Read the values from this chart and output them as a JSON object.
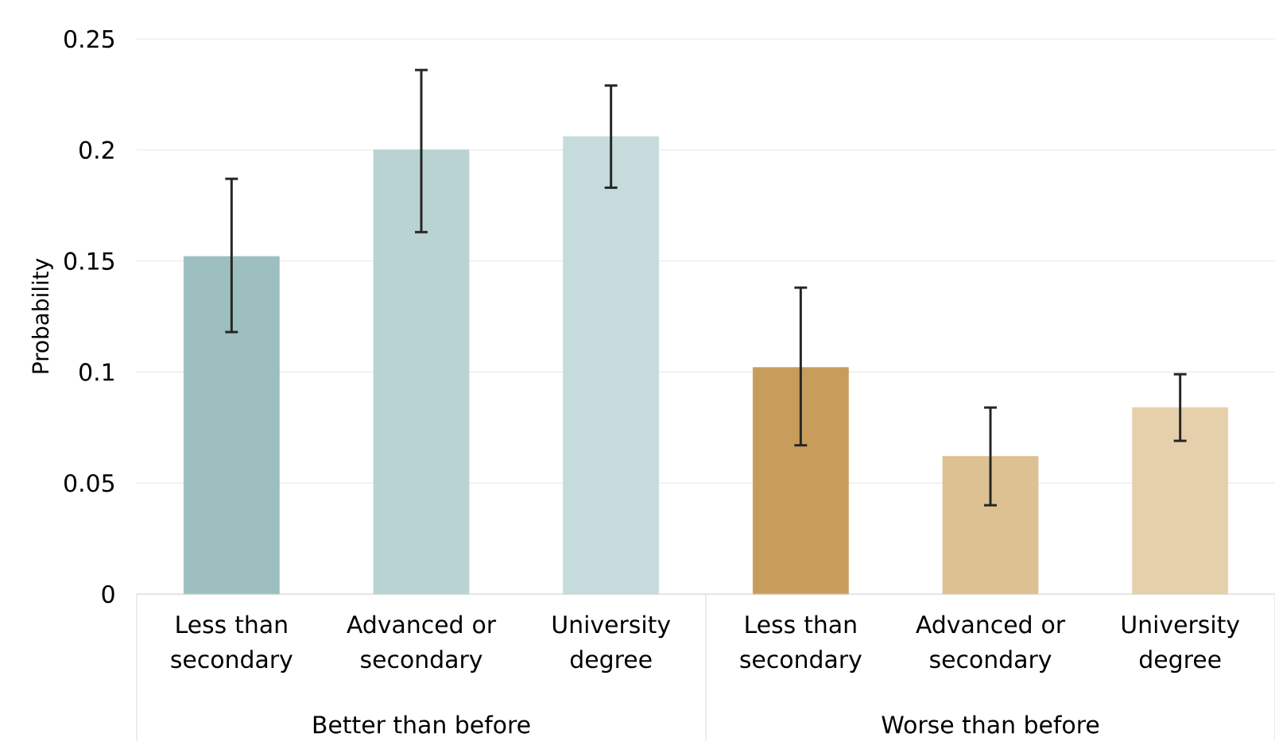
{
  "chart_data": {
    "type": "bar",
    "ylabel": "Probability",
    "categories": [
      "Less than secondary",
      "Advanced or secondary",
      "University degree",
      "Less than secondary",
      "Advanced or secondary",
      "University degree"
    ],
    "values": [
      0.152,
      0.2,
      0.206,
      0.102,
      0.062,
      0.084
    ],
    "colors": [
      "#9dbfbf",
      "#b9d3d3",
      "#c6dbdb",
      "#c89d5b",
      "#ddc192",
      "#e6d0ab"
    ],
    "errors": [
      [
        0.118,
        0.187
      ],
      [
        0.163,
        0.236
      ],
      [
        0.183,
        0.229
      ],
      [
        0.067,
        0.138
      ],
      [
        0.04,
        0.084
      ],
      [
        0.069,
        0.099
      ]
    ],
    "ylim": [
      0,
      0.25
    ],
    "yticks": [
      0,
      0.05,
      0.1,
      0.15,
      0.2,
      0.25
    ],
    "grid": "y",
    "annotations": [
      "Better than before",
      "Worse than before"
    ]
  }
}
